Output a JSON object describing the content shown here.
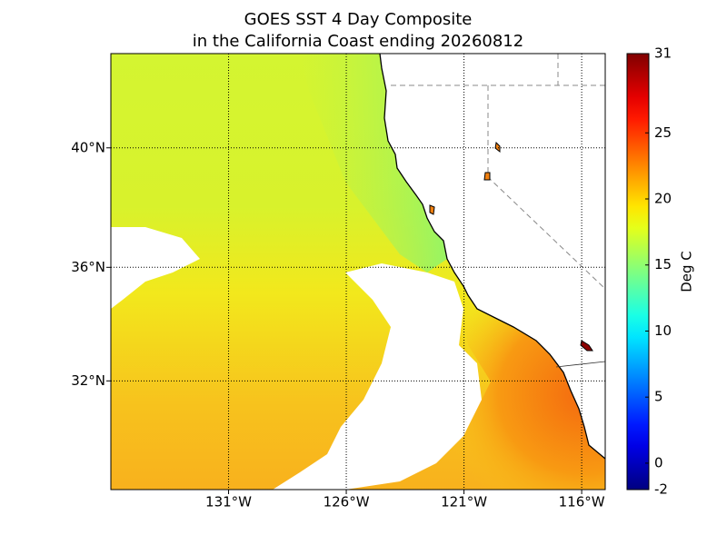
{
  "chart_data": {
    "type": "map",
    "title": "GOES SST 4 Day Composite",
    "subtitle": "in the California Coast ending 20260812",
    "xlim": [
      -136,
      -115
    ],
    "ylim": [
      28,
      43
    ],
    "xticks": [
      {
        "value": -131,
        "label": "131°W"
      },
      {
        "value": -126,
        "label": "126°W"
      },
      {
        "value": -121,
        "label": "121°W"
      },
      {
        "value": -116,
        "label": "116°W"
      }
    ],
    "yticks": [
      {
        "value": 32,
        "label": "32°N"
      },
      {
        "value": 36,
        "label": "36°N"
      },
      {
        "value": 40,
        "label": "40°N"
      }
    ],
    "colorbar": {
      "label": "Deg C",
      "lim": [
        -2,
        31
      ],
      "ticks": [
        -2,
        0,
        5,
        10,
        15,
        20,
        25,
        31
      ],
      "colormap": "jet"
    },
    "grid": true
  }
}
